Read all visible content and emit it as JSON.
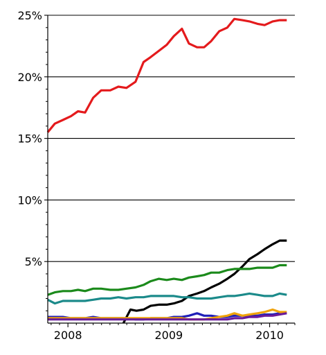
{
  "chart_data": {
    "type": "line",
    "title": "",
    "xlabel": "",
    "ylabel": "",
    "grid": "horizontal",
    "xlim": [
      2007.8,
      2010.25
    ],
    "ylim": [
      0,
      25
    ],
    "yticks": [
      {
        "value": 5,
        "label": "5%"
      },
      {
        "value": 10,
        "label": "10%"
      },
      {
        "value": 15,
        "label": "15%"
      },
      {
        "value": 20,
        "label": "20%"
      },
      {
        "value": 25,
        "label": "25%"
      }
    ],
    "xticks": [
      {
        "value": 2008.0,
        "label": "2008"
      },
      {
        "value": 2009.0,
        "label": "2009"
      },
      {
        "value": 2010.0,
        "label": "2010"
      }
    ],
    "series": [
      {
        "color": "#e41a1c",
        "x": [
          2007.8,
          2007.87,
          2007.95,
          2008.03,
          2008.1,
          2008.17,
          2008.25,
          2008.33,
          2008.42,
          2008.5,
          2008.58,
          2008.67,
          2008.75,
          2008.82,
          2008.9,
          2008.98,
          2009.05,
          2009.13,
          2009.2,
          2009.28,
          2009.35,
          2009.42,
          2009.5,
          2009.58,
          2009.65,
          2009.73,
          2009.8,
          2009.88,
          2009.95,
          2010.03,
          2010.1,
          2010.17
        ],
        "values": [
          15.5,
          16.2,
          16.5,
          16.8,
          17.2,
          17.1,
          18.3,
          18.9,
          18.9,
          19.2,
          19.1,
          19.6,
          21.2,
          21.6,
          22.1,
          22.6,
          23.3,
          23.9,
          22.7,
          22.4,
          22.4,
          22.9,
          23.7,
          24.0,
          24.7,
          24.6,
          24.5,
          24.3,
          24.2,
          24.5,
          24.6,
          24.6
        ]
      },
      {
        "color": "#000000",
        "x": [
          2008.55,
          2008.62,
          2008.68,
          2008.75,
          2008.82,
          2008.9,
          2008.98,
          2009.05,
          2009.13,
          2009.2,
          2009.28,
          2009.35,
          2009.42,
          2009.5,
          2009.58,
          2009.65,
          2009.73,
          2009.8,
          2009.88,
          2009.95,
          2010.03,
          2010.1,
          2010.17
        ],
        "values": [
          0.0,
          1.1,
          1.0,
          1.1,
          1.4,
          1.5,
          1.5,
          1.6,
          1.8,
          2.2,
          2.4,
          2.6,
          2.9,
          3.2,
          3.6,
          4.0,
          4.6,
          5.2,
          5.6,
          6.0,
          6.4,
          6.7,
          6.7
        ]
      },
      {
        "color": "#1b8a1b",
        "x": [
          2007.8,
          2007.87,
          2007.95,
          2008.03,
          2008.1,
          2008.17,
          2008.25,
          2008.33,
          2008.42,
          2008.5,
          2008.58,
          2008.67,
          2008.75,
          2008.82,
          2008.9,
          2008.98,
          2009.05,
          2009.13,
          2009.2,
          2009.28,
          2009.35,
          2009.42,
          2009.5,
          2009.58,
          2009.65,
          2009.73,
          2009.8,
          2009.88,
          2009.95,
          2010.03,
          2010.1,
          2010.17
        ],
        "values": [
          2.3,
          2.5,
          2.6,
          2.6,
          2.7,
          2.6,
          2.8,
          2.8,
          2.7,
          2.7,
          2.8,
          2.9,
          3.1,
          3.4,
          3.6,
          3.5,
          3.6,
          3.5,
          3.7,
          3.8,
          3.9,
          4.1,
          4.1,
          4.3,
          4.4,
          4.4,
          4.4,
          4.5,
          4.5,
          4.5,
          4.7,
          4.7
        ]
      },
      {
        "color": "#1b8a8a",
        "x": [
          2007.8,
          2007.87,
          2007.95,
          2008.03,
          2008.1,
          2008.17,
          2008.25,
          2008.33,
          2008.42,
          2008.5,
          2008.58,
          2008.67,
          2008.75,
          2008.82,
          2008.9,
          2008.98,
          2009.05,
          2009.13,
          2009.2,
          2009.28,
          2009.35,
          2009.42,
          2009.5,
          2009.58,
          2009.65,
          2009.73,
          2009.8,
          2009.88,
          2009.95,
          2010.03,
          2010.1,
          2010.17
        ],
        "values": [
          1.9,
          1.6,
          1.8,
          1.8,
          1.8,
          1.8,
          1.9,
          2.0,
          2.0,
          2.1,
          2.0,
          2.1,
          2.1,
          2.2,
          2.2,
          2.2,
          2.2,
          2.1,
          2.1,
          2.0,
          2.0,
          2.0,
          2.1,
          2.2,
          2.2,
          2.3,
          2.4,
          2.3,
          2.2,
          2.2,
          2.4,
          2.3
        ]
      },
      {
        "color": "#1f1fb8",
        "x": [
          2007.8,
          2007.87,
          2007.95,
          2008.03,
          2008.1,
          2008.17,
          2008.25,
          2008.33,
          2008.42,
          2008.5,
          2008.58,
          2008.67,
          2008.75,
          2008.82,
          2008.9,
          2008.98,
          2009.05,
          2009.13,
          2009.2,
          2009.28,
          2009.35,
          2009.42,
          2009.5,
          2009.58,
          2009.65,
          2009.73,
          2009.8,
          2009.88,
          2009.95,
          2010.03,
          2010.1,
          2010.17
        ],
        "values": [
          0.5,
          0.5,
          0.5,
          0.4,
          0.4,
          0.4,
          0.5,
          0.4,
          0.4,
          0.4,
          0.4,
          0.3,
          0.3,
          0.4,
          0.4,
          0.4,
          0.5,
          0.5,
          0.6,
          0.8,
          0.6,
          0.6,
          0.5,
          0.5,
          0.6,
          0.6,
          0.6,
          0.6,
          0.7,
          0.7,
          0.8,
          0.8
        ]
      },
      {
        "color": "#f0a30a",
        "x": [
          2007.8,
          2007.87,
          2007.95,
          2008.03,
          2008.1,
          2008.17,
          2008.25,
          2008.33,
          2008.42,
          2008.5,
          2008.58,
          2008.67,
          2008.75,
          2008.82,
          2008.9,
          2008.98,
          2009.05,
          2009.13,
          2009.2,
          2009.28,
          2009.35,
          2009.42,
          2009.5,
          2009.58,
          2009.65,
          2009.73,
          2009.8,
          2009.88,
          2009.95,
          2010.03,
          2010.1,
          2010.17
        ],
        "values": [
          0.4,
          0.4,
          0.4,
          0.4,
          0.4,
          0.4,
          0.4,
          0.4,
          0.4,
          0.4,
          0.4,
          0.4,
          0.4,
          0.4,
          0.4,
          0.4,
          0.4,
          0.4,
          0.3,
          0.3,
          0.3,
          0.4,
          0.5,
          0.6,
          0.8,
          0.6,
          0.7,
          0.8,
          0.9,
          1.1,
          0.9,
          0.9
        ]
      },
      {
        "color": "#6a1b9a",
        "x": [
          2007.8,
          2007.87,
          2007.95,
          2008.03,
          2008.1,
          2008.17,
          2008.25,
          2008.33,
          2008.42,
          2008.5,
          2008.58,
          2008.67,
          2008.75,
          2008.82,
          2008.9,
          2008.98,
          2009.05,
          2009.13,
          2009.2,
          2009.28,
          2009.35,
          2009.42,
          2009.5,
          2009.58,
          2009.65,
          2009.73,
          2009.8,
          2009.88,
          2009.95,
          2010.03,
          2010.1,
          2010.17
        ],
        "values": [
          0.3,
          0.3,
          0.3,
          0.3,
          0.3,
          0.3,
          0.3,
          0.3,
          0.3,
          0.3,
          0.3,
          0.3,
          0.3,
          0.3,
          0.3,
          0.3,
          0.3,
          0.3,
          0.3,
          0.3,
          0.3,
          0.3,
          0.3,
          0.3,
          0.4,
          0.4,
          0.5,
          0.5,
          0.6,
          0.6,
          0.7,
          0.8
        ]
      }
    ]
  }
}
